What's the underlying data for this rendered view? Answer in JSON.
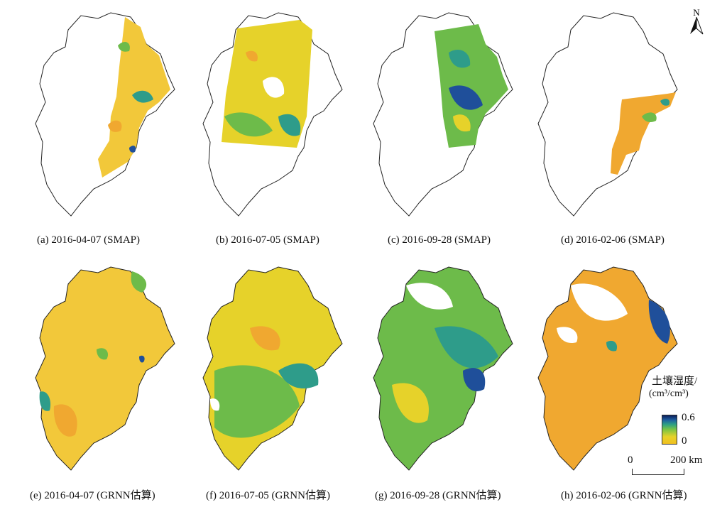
{
  "panels": [
    {
      "caption": "(a) 2016-04-07 (SMAP)",
      "coverage": "partial-swath-east",
      "dominant": "yellow-orange"
    },
    {
      "caption": "(b) 2016-07-05 (SMAP)",
      "coverage": "partial-swath-center",
      "dominant": "yellow-green"
    },
    {
      "caption": "(c) 2016-09-28 (SMAP)",
      "coverage": "partial-swath-east",
      "dominant": "green-blue"
    },
    {
      "caption": "(d) 2016-02-06 (SMAP)",
      "coverage": "small-patch-southeast",
      "dominant": "orange"
    },
    {
      "caption": "(e) 2016-04-07 (GRNN估算)",
      "coverage": "full",
      "dominant": "yellow-orange"
    },
    {
      "caption": "(f) 2016-07-05 (GRNN估算)",
      "coverage": "full",
      "dominant": "yellow-green"
    },
    {
      "caption": "(g) 2016-09-28 (GRNN估算)",
      "coverage": "full",
      "dominant": "green-blue"
    },
    {
      "caption": "(h) 2016-02-06 (GRNN估算)",
      "coverage": "full",
      "dominant": "orange"
    }
  ],
  "legend": {
    "title": "土壤湿度/",
    "unit": "(cm³/cm³)",
    "max_label": "0.6",
    "min_label": "0",
    "colors": [
      "#f0c020",
      "#e6d22a",
      "#7cc443",
      "#2ea084",
      "#1f5fa0",
      "#0b1f5c"
    ]
  },
  "scale_bar": {
    "start": "0",
    "end": "200 km"
  },
  "north_arrow": {
    "label": "N"
  },
  "colors": {
    "yellow": "#f2c83a",
    "orange": "#f0a830",
    "green": "#6dbb4a",
    "teal": "#2e9c8a",
    "blue": "#1f4f9a"
  }
}
